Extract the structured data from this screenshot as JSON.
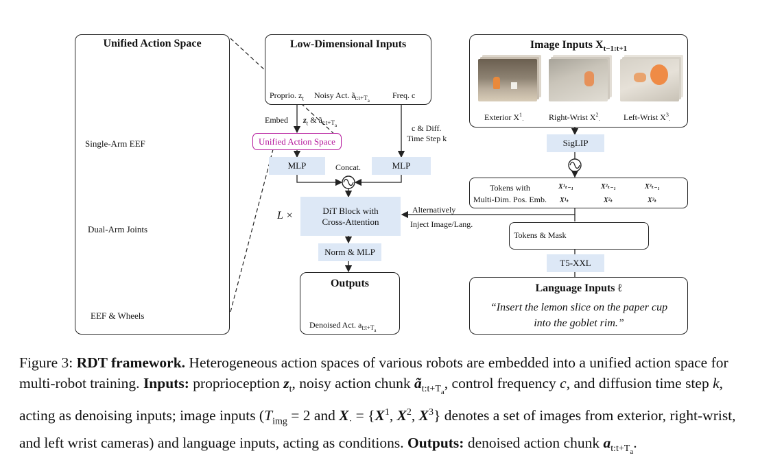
{
  "diagram": {
    "unified": {
      "title": "Unified Action Space",
      "robots": [
        "Single-Arm EEF",
        "Dual-Arm Joints",
        "EEF & Wheels"
      ]
    },
    "lowdim": {
      "title": "Low-Dimensional Inputs",
      "proprio": "Proprio. z",
      "proprio_sub": "t",
      "noisy": "Noisy Act. ã",
      "noisy_sub": "t:t+T",
      "noisy_subsub": "a",
      "freq": "Freq. c"
    },
    "embed": "Embed",
    "zt_label": "z",
    "zt_sub": "t",
    "zt_amp": "& ã",
    "zt_sub2": "t:t+T",
    "zt_subsub2": "a",
    "cdiff_1": "c & Diff.",
    "cdiff_2": "Time Step k",
    "uas_box": "Unified Action Space",
    "mlp_left": "MLP",
    "mlp_right": "MLP",
    "concat": "Concat.",
    "lx": "L ×",
    "dit": "DiT Block with Cross-Attention",
    "alternatively": "Alternatively",
    "inject": "Inject Image/Lang.",
    "norm_mlp": "Norm & MLP",
    "outputs": {
      "title": "Outputs",
      "label": "Denoised Act. a",
      "sub": "t:t+T",
      "subsub": "a"
    },
    "image_inputs": {
      "title": "Image Inputs X",
      "title_sub": "t−1:t+1",
      "cams": [
        {
          "name": "Exterior X",
          "sup": "1",
          "sub": "·"
        },
        {
          "name": "Right-Wrist X",
          "sup": "2",
          "sub": "·"
        },
        {
          "name": "Left-Wrist X",
          "sup": "3",
          "sub": "·"
        }
      ]
    },
    "siglip": "SigLIP",
    "tokens_with_1": "Tokens with",
    "tokens_with_2": "Multi-Dim. Pos. Emb.",
    "token_rows": {
      "row1": [
        "X¹ₜ₋₁",
        "X²ₜ₋₁",
        "X³ₜ₋₁"
      ],
      "row2": [
        "X¹ₜ",
        "X²ₜ",
        "X³ₜ"
      ]
    },
    "tokens_mask": "Tokens & Mask",
    "t5": "T5-XXL",
    "language": {
      "title": "Language Inputs ℓ",
      "quote_1": "“Insert the lemon slice on the paper cup",
      "quote_2": "into the goblet rim.”"
    },
    "colors": {
      "magenta": "#b3149a",
      "pink": "#e8b4df",
      "block_blue": "#dde8f6",
      "bar_grey": "#555555",
      "green": "#5a8f3c"
    }
  },
  "caption": {
    "fig": "Figure 3:",
    "bold_title": "RDT framework.",
    "t1": "Heterogeneous action spaces of various robots are embedded into a unified action space for multi-robot training.",
    "inputs_label": "Inputs:",
    "t2": "proprioception",
    "z": "z",
    "z_sub": "t",
    "t3": ", noisy action chunk",
    "a": "ã",
    "a_sub": "t:t+T",
    "a_subsub": "a",
    "t4": ", control frequency",
    "c": "c",
    "t5": ", and diffusion time step",
    "k": "k",
    "t6": ", acting as denoising inputs; image inputs (",
    "timg": "T",
    "timg_sub": "img",
    "t7": "= 2 and",
    "xset": "X",
    "xset_sub": "·",
    "t8": "= {",
    "x1": "X",
    "x1_sup": "1",
    "x2": "X",
    "x2_sup": "2",
    "x3": "X",
    "x3_sup": "3",
    "t9": "} denotes a set of images from exterior, right-wrist, and left wrist cameras) and language inputs, acting as conditions.",
    "outputs_label": "Outputs:",
    "t10": "denoised action chunk",
    "out_a": "a",
    "out_sub": "t:t+T",
    "out_subsub": "a",
    "t11": "."
  }
}
